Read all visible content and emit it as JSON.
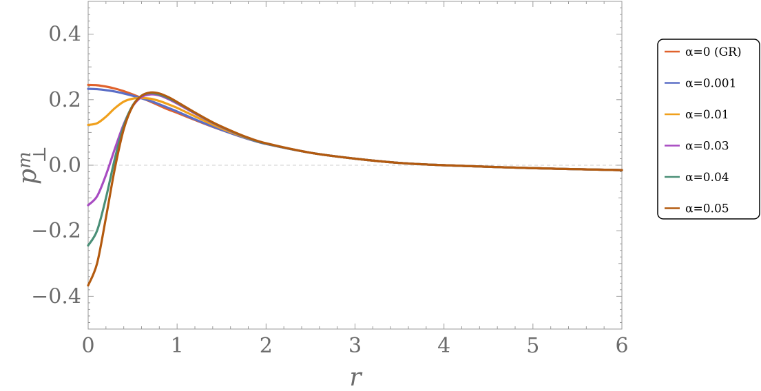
{
  "chart_data": {
    "type": "line",
    "xlabel": "r",
    "ylabel": "p^m_⊥",
    "ylabel_base": "p",
    "ylabel_sup": "m",
    "ylabel_sub": "⊥",
    "xlim": [
      0,
      6
    ],
    "ylim": [
      -0.5,
      0.5
    ],
    "x_ticks": [
      0,
      1,
      2,
      3,
      4,
      5,
      6
    ],
    "x_tick_labels": [
      "0",
      "1",
      "2",
      "3",
      "4",
      "5",
      "6"
    ],
    "y_ticks": [
      -0.4,
      -0.2,
      0.0,
      0.2,
      0.4
    ],
    "y_tick_labels": [
      "−0.4",
      "−0.2",
      "0.0",
      "0.2",
      "0.4"
    ],
    "zero_line": true,
    "grid": false,
    "legend_position": "right",
    "series": [
      {
        "name": "α=0 (GR)",
        "color": "#e0622c",
        "x": [
          0,
          0.1,
          0.2,
          0.3,
          0.4,
          0.5,
          0.6,
          0.7,
          0.8,
          0.9,
          1.0,
          1.2,
          1.4,
          1.6,
          1.8,
          2.0,
          2.5,
          3.0,
          3.5,
          4.0,
          5.0,
          6.0
        ],
        "y": [
          0.245,
          0.244,
          0.24,
          0.234,
          0.226,
          0.216,
          0.205,
          0.194,
          0.182,
          0.17,
          0.16,
          0.138,
          0.117,
          0.098,
          0.08,
          0.065,
          0.038,
          0.02,
          0.007,
          0.0,
          -0.009,
          -0.015
        ]
      },
      {
        "name": "α=0.001",
        "color": "#5b6ec6",
        "x": [
          0,
          0.1,
          0.2,
          0.3,
          0.4,
          0.5,
          0.6,
          0.7,
          0.8,
          0.9,
          1.0,
          1.2,
          1.4,
          1.6,
          1.8,
          2.0,
          2.5,
          3.0,
          3.5,
          4.0,
          5.0,
          6.0
        ],
        "y": [
          0.233,
          0.232,
          0.229,
          0.225,
          0.219,
          0.212,
          0.204,
          0.196,
          0.186,
          0.175,
          0.164,
          0.14,
          0.118,
          0.098,
          0.08,
          0.065,
          0.038,
          0.02,
          0.007,
          0.0,
          -0.009,
          -0.015
        ]
      },
      {
        "name": "α=0.01",
        "color": "#f0a01c",
        "x": [
          0,
          0.1,
          0.2,
          0.3,
          0.4,
          0.5,
          0.6,
          0.7,
          0.8,
          0.9,
          1.0,
          1.2,
          1.4,
          1.6,
          1.8,
          2.0,
          2.5,
          3.0,
          3.5,
          4.0,
          5.0,
          6.0
        ],
        "y": [
          0.123,
          0.128,
          0.148,
          0.174,
          0.194,
          0.203,
          0.205,
          0.203,
          0.196,
          0.186,
          0.175,
          0.149,
          0.124,
          0.101,
          0.082,
          0.066,
          0.038,
          0.02,
          0.007,
          0.0,
          -0.009,
          -0.015
        ]
      },
      {
        "name": "α=0.03",
        "color": "#a84cc2",
        "x": [
          0,
          0.1,
          0.2,
          0.3,
          0.4,
          0.5,
          0.6,
          0.7,
          0.8,
          0.9,
          1.0,
          1.2,
          1.4,
          1.6,
          1.8,
          2.0,
          2.5,
          3.0,
          3.5,
          4.0,
          5.0,
          6.0
        ],
        "y": [
          -0.122,
          -0.095,
          -0.03,
          0.05,
          0.125,
          0.18,
          0.208,
          0.216,
          0.213,
          0.202,
          0.188,
          0.158,
          0.129,
          0.104,
          0.083,
          0.066,
          0.038,
          0.02,
          0.007,
          0.0,
          -0.009,
          -0.015
        ]
      },
      {
        "name": "α=0.04",
        "color": "#4a8f77",
        "x": [
          0,
          0.1,
          0.2,
          0.3,
          0.4,
          0.5,
          0.6,
          0.7,
          0.8,
          0.9,
          1.0,
          1.2,
          1.4,
          1.6,
          1.8,
          2.0,
          2.5,
          3.0,
          3.5,
          4.0,
          5.0,
          6.0
        ],
        "y": [
          -0.245,
          -0.2,
          -0.1,
          0.02,
          0.12,
          0.182,
          0.212,
          0.22,
          0.216,
          0.205,
          0.191,
          0.16,
          0.13,
          0.105,
          0.083,
          0.066,
          0.038,
          0.02,
          0.007,
          0.0,
          -0.009,
          -0.015
        ]
      },
      {
        "name": "α=0.05",
        "color": "#b35a0f",
        "x": [
          0,
          0.1,
          0.2,
          0.3,
          0.4,
          0.5,
          0.6,
          0.7,
          0.8,
          0.9,
          1.0,
          1.2,
          1.4,
          1.6,
          1.8,
          2.0,
          2.5,
          3.0,
          3.5,
          4.0,
          5.0,
          6.0
        ],
        "y": [
          -0.367,
          -0.3,
          -0.16,
          -0.01,
          0.11,
          0.18,
          0.212,
          0.222,
          0.219,
          0.208,
          0.193,
          0.161,
          0.131,
          0.106,
          0.084,
          0.067,
          0.038,
          0.02,
          0.007,
          0.0,
          -0.009,
          -0.015
        ]
      }
    ]
  }
}
